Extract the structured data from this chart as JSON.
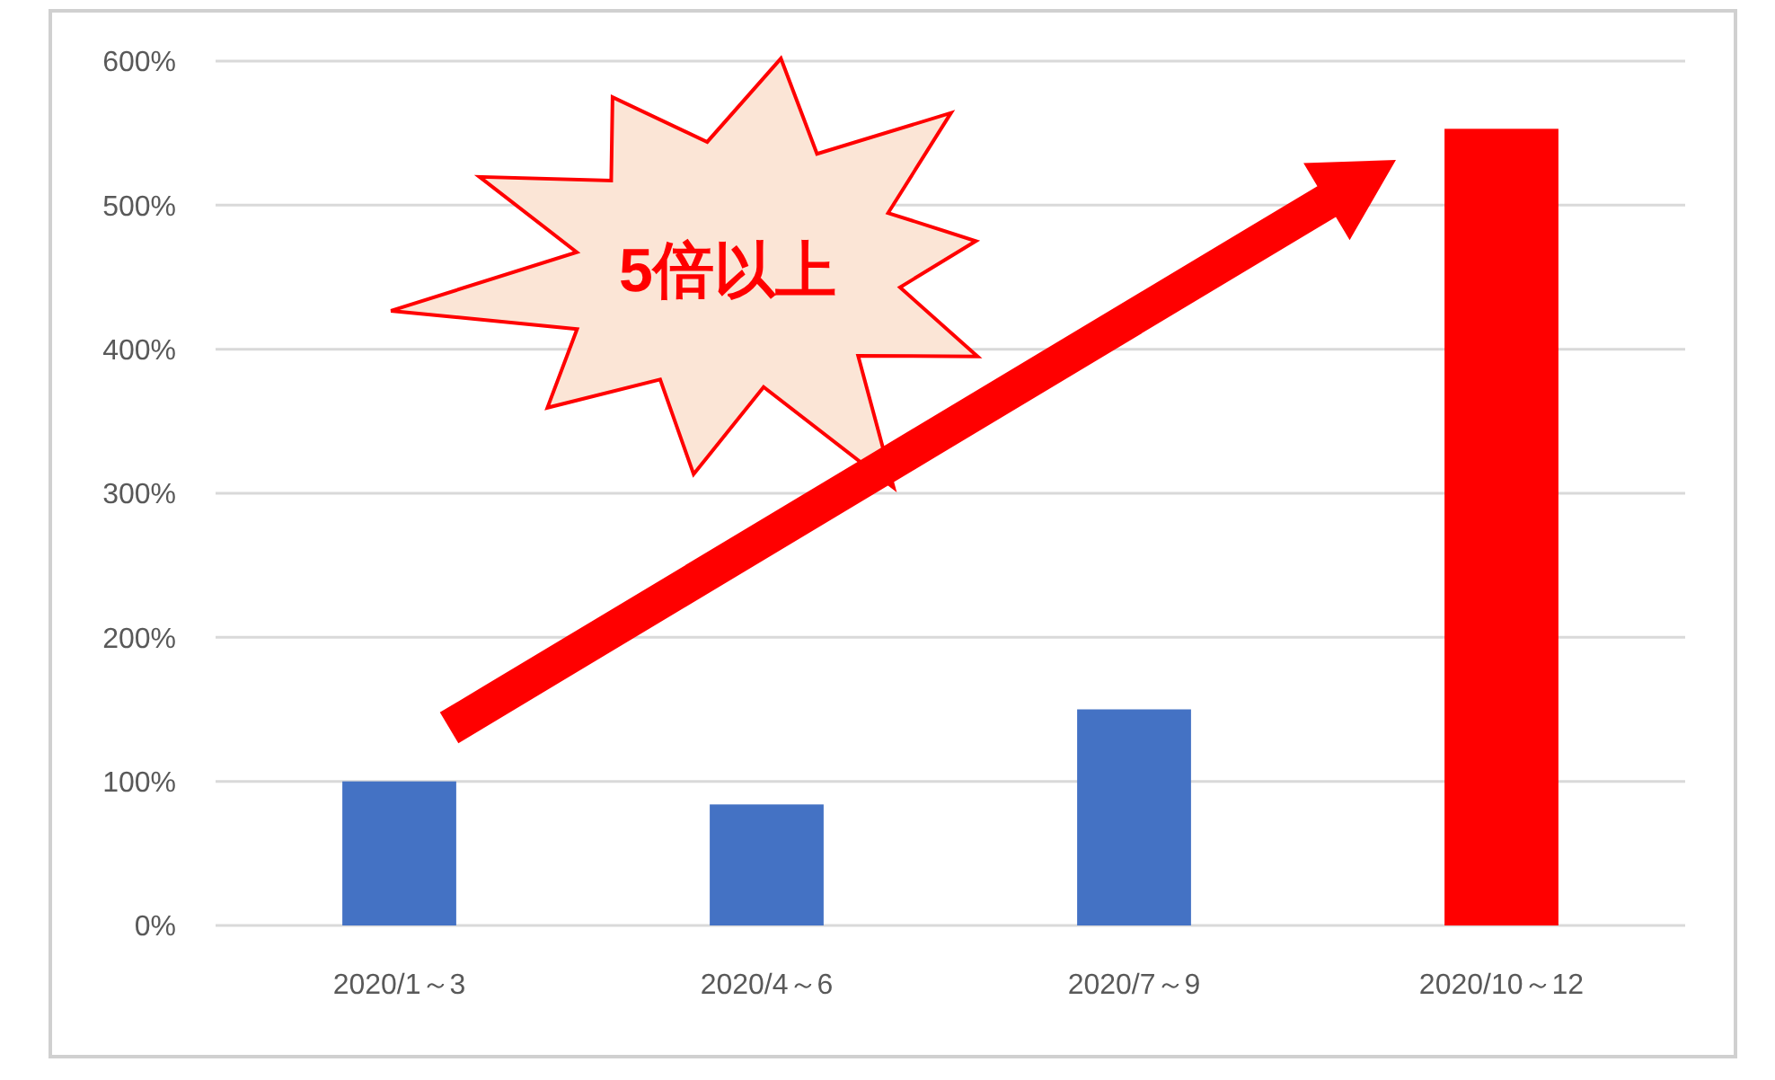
{
  "chart_data": {
    "type": "bar",
    "categories": [
      "2020/1～3",
      "2020/4～6",
      "2020/7～9",
      "2020/10～12"
    ],
    "values": [
      100,
      84,
      150,
      553
    ],
    "colors": [
      "#4472c4",
      "#4472c4",
      "#4472c4",
      "#ff0000"
    ],
    "ylim": [
      0,
      600
    ],
    "yticks": [
      {
        "value": 0,
        "label": "0%"
      },
      {
        "value": 100,
        "label": "100%"
      },
      {
        "value": 200,
        "label": "200%"
      },
      {
        "value": 300,
        "label": "300%"
      },
      {
        "value": 400,
        "label": "400%"
      },
      {
        "value": 500,
        "label": "500%"
      },
      {
        "value": 600,
        "label": "600%"
      }
    ],
    "grid": "y",
    "annotations": [
      "5倍以上"
    ]
  }
}
